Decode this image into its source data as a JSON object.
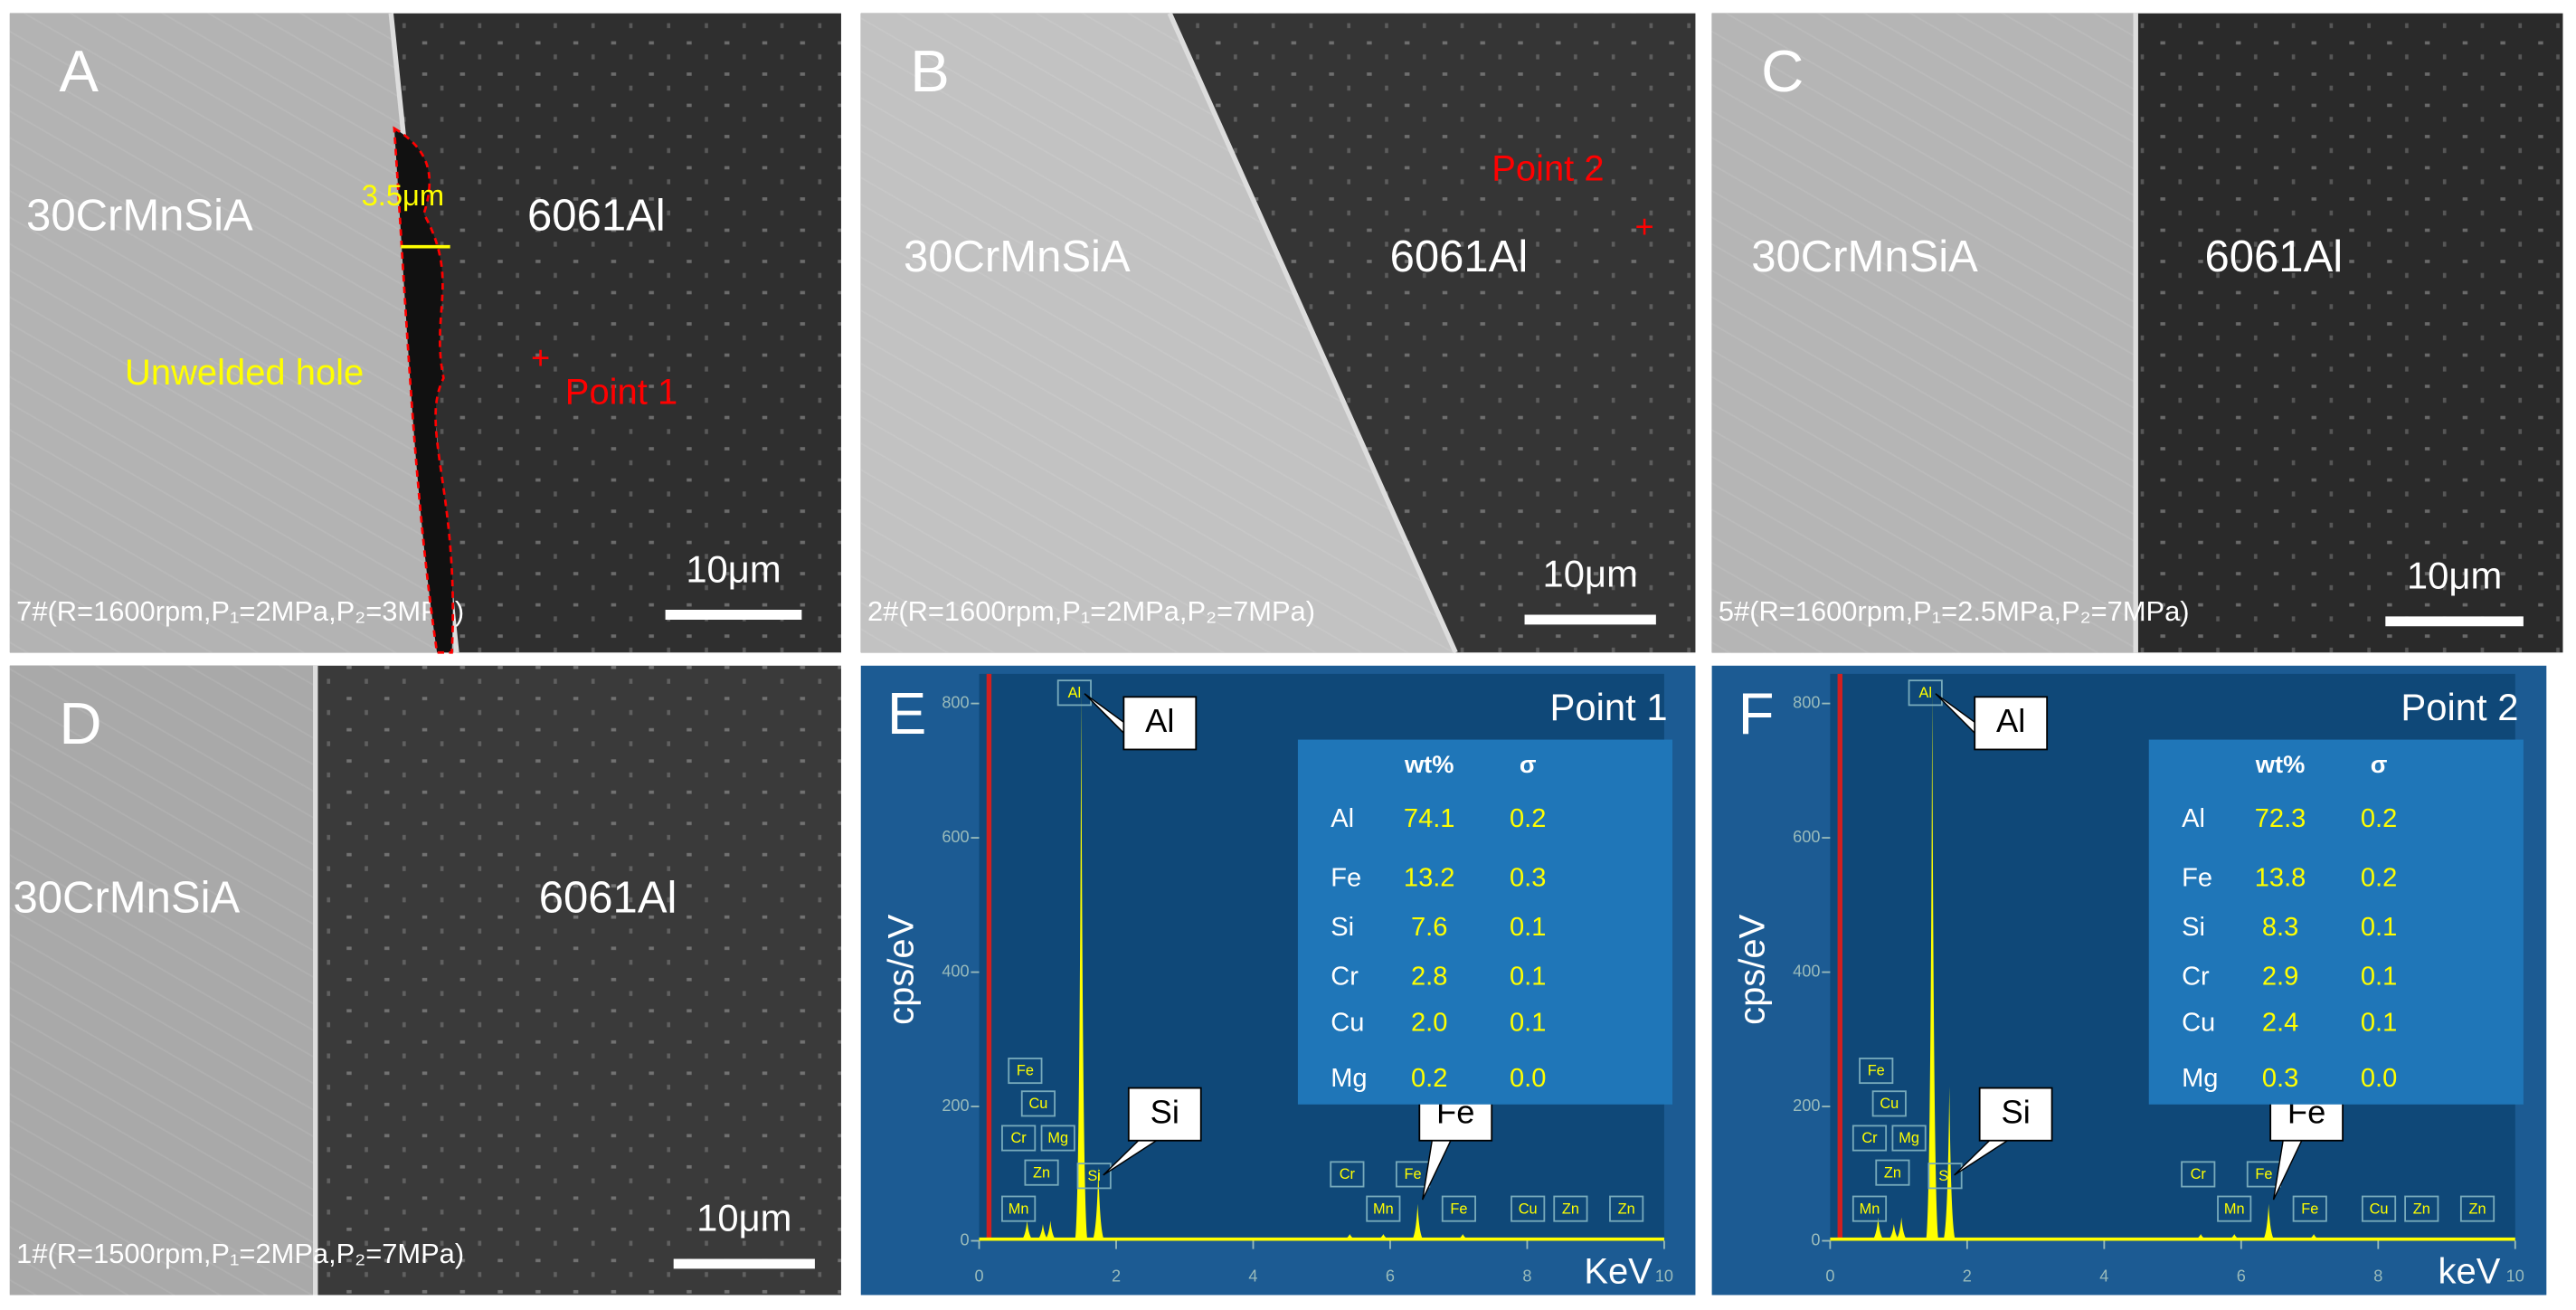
{
  "panels": [
    {
      "label": "A",
      "left": "30CrMnSiA",
      "right": "6061Al",
      "caption": "7#(R=1600rpm,P₁=2MPa,P₂=3MPa)",
      "scale": "10μm",
      "annotations": [
        "3.5μm",
        "Unwelded hole",
        "Point 1"
      ]
    },
    {
      "label": "B",
      "left": "30CrMnSiA",
      "right": "6061Al",
      "caption": "2#(R=1600rpm,P₁=2MPa,P₂=7MPa)",
      "scale": "10μm",
      "annotations": [
        "Point 2"
      ]
    },
    {
      "label": "C",
      "left": "30CrMnSiA",
      "right": "6061Al",
      "caption": "5#(R=1600rpm,P₁=2.5MPa,P₂=7MPa)",
      "scale": "10μm",
      "annotations": []
    },
    {
      "label": "D",
      "left": "30CrMnSiA",
      "right": "6061Al",
      "caption": "1#(R=1500rpm,P₁=2MPa,P₂=7MPa)",
      "scale": "10μm",
      "annotations": []
    }
  ],
  "spectra": [
    {
      "label": "E",
      "title": "Point 1",
      "y_label": "cps/eV",
      "x_label": "KeV",
      "xlim": [
        0,
        10
      ],
      "xticks": [
        0,
        2,
        4,
        6,
        8,
        10
      ],
      "ylim": [
        0,
        800
      ],
      "yticks": [
        0,
        200,
        400,
        600,
        800
      ],
      "peaks": {
        "x": [
          0.7,
          0.93,
          1.04,
          1.49,
          1.74,
          5.41,
          5.9,
          6.4,
          7.06
        ],
        "y": [
          30,
          25,
          30,
          820,
          110,
          10,
          10,
          55,
          10
        ]
      },
      "callouts": [
        "Al",
        "Si",
        "Fe"
      ],
      "tags": [
        "Al",
        "Fe",
        "Cu",
        "Cr",
        "Mg",
        "Zn",
        "Si",
        "Mn",
        "Cr",
        "Mn",
        "Fe",
        "Fe",
        "Cu",
        "Zn",
        "Zn"
      ],
      "table": {
        "header": [
          "wt%",
          "σ"
        ],
        "rows": [
          [
            "Al",
            "74.1",
            "0.2"
          ],
          [
            "Fe",
            "13.2",
            "0.3"
          ],
          [
            "Si",
            "7.6",
            "0.1"
          ],
          [
            "Cr",
            "2.8",
            "0.1"
          ],
          [
            "Cu",
            "2.0",
            "0.1"
          ],
          [
            "Mg",
            "0.2",
            "0.0"
          ]
        ]
      }
    },
    {
      "label": "F",
      "title": "Point 2",
      "y_label": "cps/eV",
      "x_label": "keV",
      "xlim": [
        0,
        10
      ],
      "xticks": [
        0,
        2,
        4,
        6,
        8,
        10
      ],
      "ylim": [
        0,
        800
      ],
      "yticks": [
        0,
        200,
        400,
        600,
        800
      ],
      "peaks": {
        "x": [
          0.7,
          0.93,
          1.04,
          1.49,
          1.74,
          5.41,
          5.9,
          6.4,
          7.06
        ],
        "y": [
          35,
          25,
          35,
          820,
          230,
          10,
          10,
          55,
          10
        ]
      },
      "callouts": [
        "Al",
        "Si",
        "Fe"
      ],
      "tags": [
        "Al",
        "Fe",
        "Cu",
        "Cr",
        "Mg",
        "Zn",
        "Si",
        "Mn",
        "Cr",
        "Mn",
        "Fe",
        "Fe",
        "Cu",
        "Zn",
        "Zn"
      ],
      "table": {
        "header": [
          "wt%",
          "σ"
        ],
        "rows": [
          [
            "Al",
            "72.3",
            "0.2"
          ],
          [
            "Fe",
            "13.8",
            "0.2"
          ],
          [
            "Si",
            "8.3",
            "0.1"
          ],
          [
            "Cr",
            "2.9",
            "0.1"
          ],
          [
            "Cu",
            "2.4",
            "0.1"
          ],
          [
            "Mg",
            "0.3",
            "0.0"
          ]
        ]
      }
    }
  ]
}
